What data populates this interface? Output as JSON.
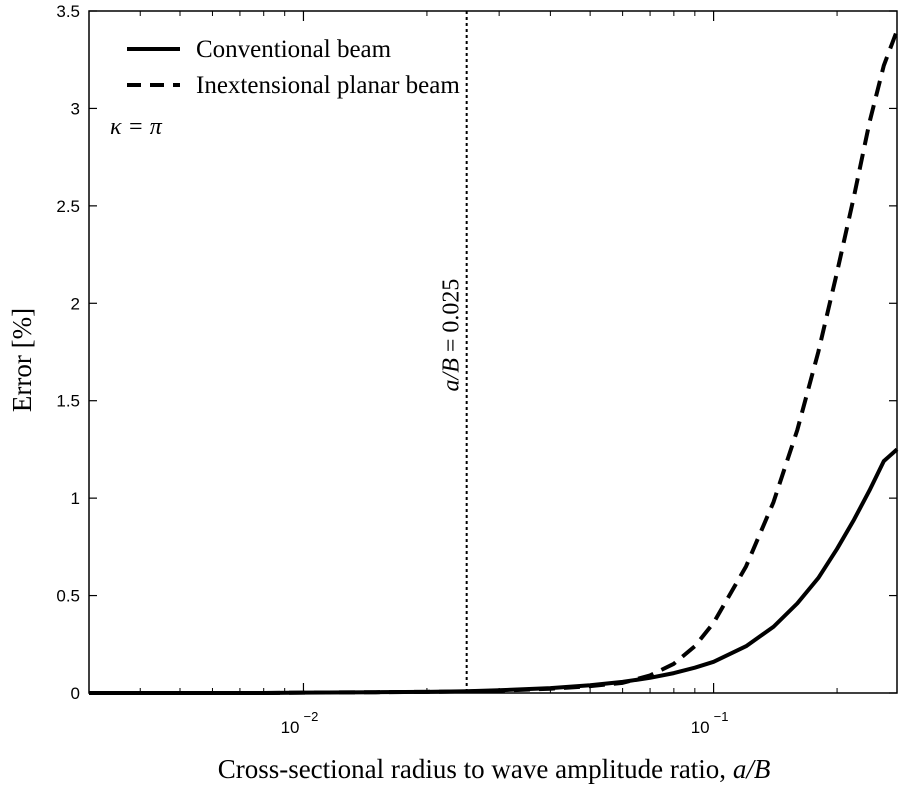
{
  "chart_data": {
    "type": "line",
    "xscale": "log",
    "xlim": [
      0.003,
      0.28
    ],
    "ylim": [
      0,
      3.5
    ],
    "xlabel": "Cross-sectional radius to wave amplitude ratio, a/B",
    "xlabel_plain": "Cross-sectional radius to wave amplitude ratio, ",
    "xlabel_italic": "a/B",
    "ylabel": "Error [%]",
    "yticks": [
      0,
      0.5,
      1,
      1.5,
      2,
      2.5,
      3,
      3.5
    ],
    "ytick_labels": [
      "0",
      "0.5",
      "1",
      "1.5",
      "2",
      "2.5",
      "3",
      "3.5"
    ],
    "xticks_major": [
      {
        "value": 0.01,
        "base": "10",
        "exp": "−2"
      },
      {
        "value": 0.1,
        "base": "10",
        "exp": "−1"
      }
    ],
    "xticks_minor": [
      0.003,
      0.004,
      0.005,
      0.006,
      0.007,
      0.008,
      0.009,
      0.02,
      0.03,
      0.04,
      0.05,
      0.06,
      0.07,
      0.08,
      0.09,
      0.2
    ],
    "grid": false,
    "legend_position": "top-left",
    "series": [
      {
        "name": "Conventional beam",
        "style": "solid",
        "color": "#000000",
        "x": [
          0.003,
          0.005,
          0.008,
          0.01,
          0.015,
          0.02,
          0.025,
          0.03,
          0.04,
          0.05,
          0.06,
          0.07,
          0.08,
          0.09,
          0.1,
          0.12,
          0.14,
          0.16,
          0.18,
          0.2,
          0.22,
          0.24,
          0.26,
          0.28
        ],
        "y": [
          0.0,
          0.0,
          0.0,
          0.002,
          0.004,
          0.006,
          0.009,
          0.014,
          0.025,
          0.04,
          0.057,
          0.078,
          0.102,
          0.13,
          0.16,
          0.24,
          0.34,
          0.46,
          0.59,
          0.74,
          0.89,
          1.04,
          1.19,
          1.25
        ]
      },
      {
        "name": "Inextensional planar beam",
        "style": "dashed",
        "color": "#000000",
        "x": [
          0.003,
          0.005,
          0.008,
          0.01,
          0.015,
          0.02,
          0.025,
          0.03,
          0.04,
          0.05,
          0.06,
          0.07,
          0.08,
          0.09,
          0.1,
          0.12,
          0.14,
          0.16,
          0.18,
          0.2,
          0.22,
          0.24,
          0.26,
          0.28
        ],
        "y": [
          0.0,
          0.0,
          0.0,
          0.002,
          0.004,
          0.006,
          0.008,
          0.012,
          0.022,
          0.035,
          0.052,
          0.09,
          0.15,
          0.24,
          0.36,
          0.65,
          0.98,
          1.35,
          1.75,
          2.16,
          2.55,
          2.93,
          3.22,
          3.4
        ]
      }
    ],
    "vline": {
      "x": 0.025,
      "style": "dotted",
      "label_italic": "a/B",
      "label_rest": " = 0.025"
    },
    "annotation": "κ = π"
  }
}
